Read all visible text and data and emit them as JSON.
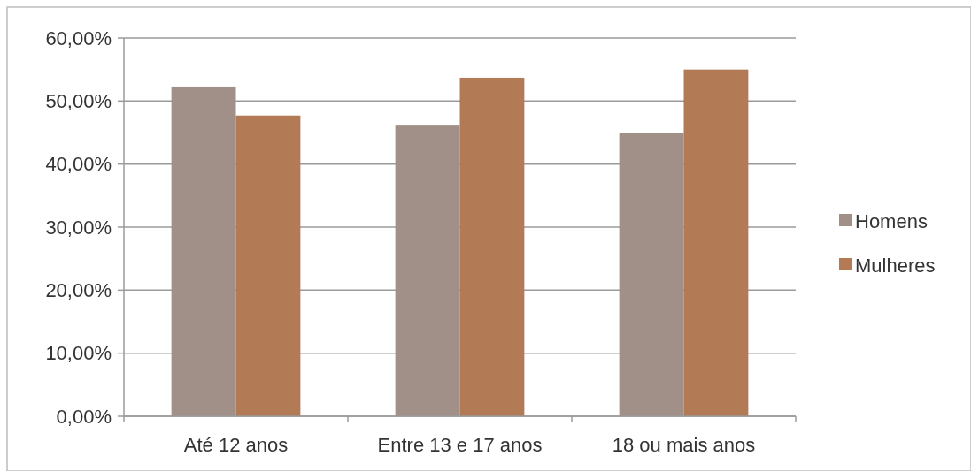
{
  "chart_data": {
    "type": "bar",
    "categories": [
      "Até 12 anos",
      "Entre 13 e 17 anos",
      "18 ou mais anos"
    ],
    "series": [
      {
        "name": "Homens",
        "color": "#a09088",
        "values": [
          52.3,
          46.1,
          45.0
        ]
      },
      {
        "name": "Mulheres",
        "color": "#b27a55",
        "values": [
          47.7,
          53.7,
          55.0
        ]
      }
    ],
    "ylim": [
      0,
      60
    ],
    "yticks": [
      {
        "value": 0,
        "label": "0,00%"
      },
      {
        "value": 10,
        "label": "10,00%"
      },
      {
        "value": 20,
        "label": "20,00%"
      },
      {
        "value": 30,
        "label": "30,00%"
      },
      {
        "value": 40,
        "label": "40,00%"
      },
      {
        "value": 50,
        "label": "50,00%"
      },
      {
        "value": 60,
        "label": "60,00%"
      }
    ],
    "grid": "y",
    "legend": "right"
  }
}
